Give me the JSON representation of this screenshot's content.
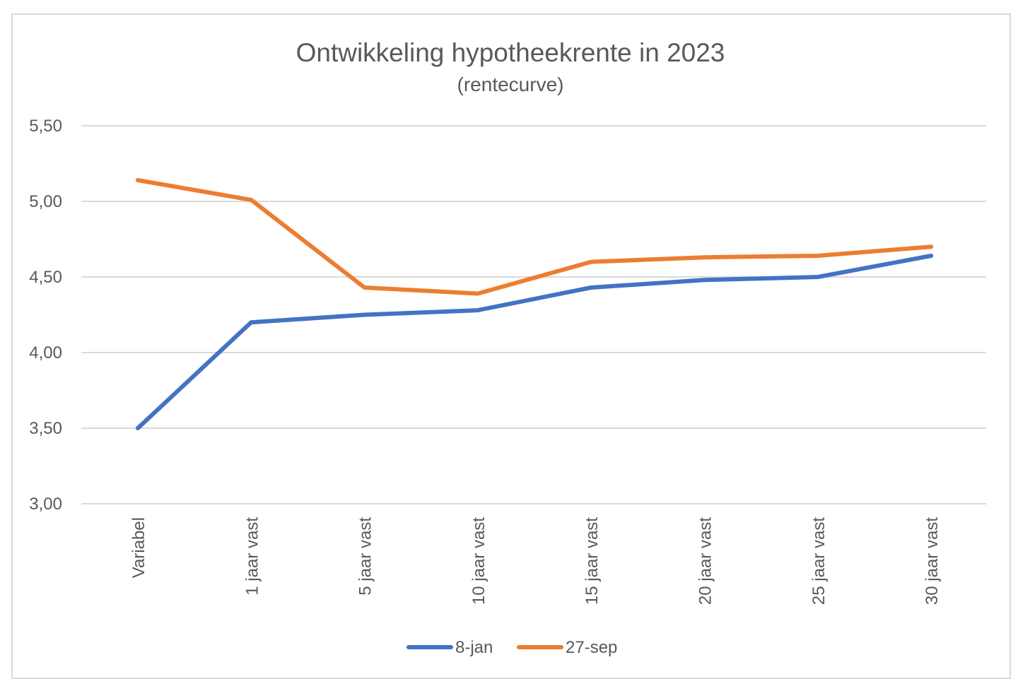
{
  "chart_data": {
    "type": "line",
    "title": "Ontwikkeling hypotheekrente in 2023",
    "subtitle": "(rentecurve)",
    "xlabel": "",
    "ylabel": "",
    "categories": [
      "Variabel",
      "1 jaar vast",
      "5 jaar vast",
      "10 jaar vast",
      "15 jaar vast",
      "20 jaar vast",
      "25 jaar vast",
      "30 jaar vast"
    ],
    "yticks": [
      "3,00",
      "3,50",
      "4,00",
      "4,50",
      "5,00",
      "5,50"
    ],
    "ylim": [
      3.0,
      5.5
    ],
    "grid": true,
    "legend_position": "bottom",
    "series": [
      {
        "name": "8-jan",
        "color": "#4472c4",
        "values": [
          3.5,
          4.2,
          4.25,
          4.28,
          4.43,
          4.48,
          4.5,
          4.64
        ]
      },
      {
        "name": "27-sep",
        "color": "#ed7d31",
        "values": [
          5.14,
          5.01,
          4.43,
          4.39,
          4.6,
          4.63,
          4.64,
          4.7
        ]
      }
    ]
  }
}
